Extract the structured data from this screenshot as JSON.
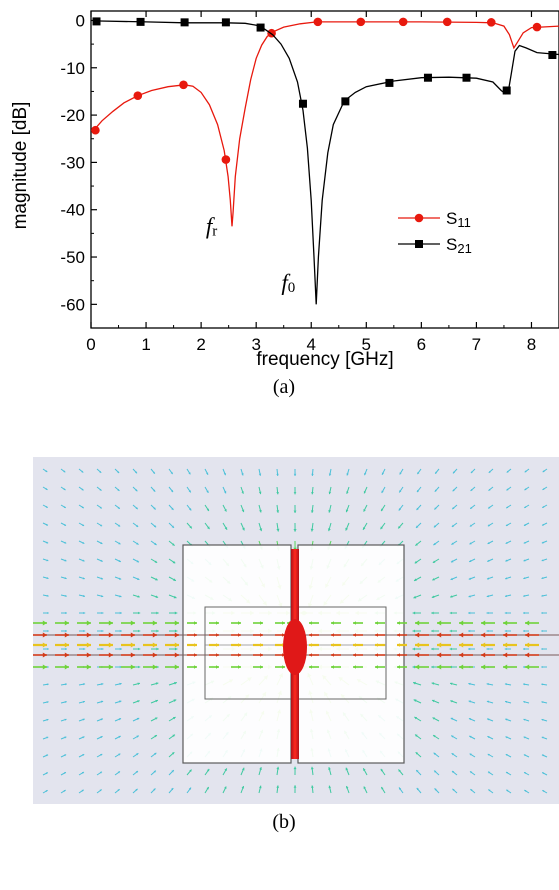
{
  "figure": {
    "caption_a": "(a)",
    "caption_b": "(b)"
  },
  "chart_data": {
    "type": "line",
    "xlabel": "frequency [GHz]",
    "ylabel": "magnitude [dB]",
    "xlim": [
      0,
      8.5
    ],
    "ylim": [
      -65,
      2
    ],
    "xticks": [
      0,
      1,
      2,
      3,
      4,
      5,
      6,
      7,
      8
    ],
    "yticks": [
      0,
      -10,
      -20,
      -30,
      -40,
      -50,
      -60
    ],
    "legend_position": "lower-right",
    "series": [
      {
        "name": "S11",
        "color": "#e8190e",
        "marker": "circle",
        "curve": [
          [
            0.05,
            -23.2
          ],
          [
            0.2,
            -21.2
          ],
          [
            0.4,
            -19.2
          ],
          [
            0.6,
            -17.4
          ],
          [
            0.85,
            -15.9
          ],
          [
            1.1,
            -14.8
          ],
          [
            1.4,
            -14.0
          ],
          [
            1.7,
            -13.6
          ],
          [
            1.85,
            -13.9
          ],
          [
            2.0,
            -15.2
          ],
          [
            2.15,
            -17.8
          ],
          [
            2.3,
            -22.0
          ],
          [
            2.42,
            -27.5
          ],
          [
            2.49,
            -33.0
          ],
          [
            2.53,
            -38.0
          ],
          [
            2.56,
            -43.5
          ],
          [
            2.58,
            -40.5
          ],
          [
            2.62,
            -33.0
          ],
          [
            2.7,
            -25.0
          ],
          [
            2.8,
            -18.5
          ],
          [
            2.9,
            -12.5
          ],
          [
            3.0,
            -8.0
          ],
          [
            3.1,
            -5.2
          ],
          [
            3.2,
            -3.4
          ],
          [
            3.33,
            -2.3
          ],
          [
            3.5,
            -1.4
          ],
          [
            3.8,
            -0.7
          ],
          [
            4.1,
            -0.3
          ],
          [
            5.0,
            -0.3
          ],
          [
            6.0,
            -0.3
          ],
          [
            7.0,
            -0.4
          ],
          [
            7.3,
            -0.5
          ],
          [
            7.5,
            -1.2
          ],
          [
            7.6,
            -3.0
          ],
          [
            7.68,
            -5.8
          ],
          [
            7.75,
            -4.5
          ],
          [
            7.85,
            -2.6
          ],
          [
            8.0,
            -1.5
          ],
          [
            8.5,
            -1.2
          ]
        ],
        "markers": [
          [
            0.08,
            -23.2
          ],
          [
            0.85,
            -15.9
          ],
          [
            1.68,
            -13.6
          ],
          [
            2.45,
            -29.4
          ],
          [
            3.28,
            -2.7
          ],
          [
            4.12,
            -0.3
          ],
          [
            4.9,
            -0.3
          ],
          [
            5.67,
            -0.3
          ],
          [
            6.47,
            -0.3
          ],
          [
            7.27,
            -0.4
          ],
          [
            8.1,
            -1.4
          ]
        ]
      },
      {
        "name": "S21",
        "color": "#000000",
        "marker": "square",
        "curve": [
          [
            0.05,
            -0.1
          ],
          [
            1.0,
            -0.3
          ],
          [
            1.7,
            -0.5
          ],
          [
            2.45,
            -0.5
          ],
          [
            2.8,
            -0.6
          ],
          [
            3.0,
            -1.0
          ],
          [
            3.15,
            -1.8
          ],
          [
            3.3,
            -3.0
          ],
          [
            3.45,
            -5.0
          ],
          [
            3.6,
            -8.0
          ],
          [
            3.75,
            -13.0
          ],
          [
            3.85,
            -19.0
          ],
          [
            3.93,
            -27.0
          ],
          [
            4.0,
            -38.0
          ],
          [
            4.05,
            -50.0
          ],
          [
            4.09,
            -60.0
          ],
          [
            4.13,
            -50.0
          ],
          [
            4.2,
            -38.0
          ],
          [
            4.3,
            -28.0
          ],
          [
            4.4,
            -22.0
          ],
          [
            4.6,
            -17.0
          ],
          [
            4.8,
            -15.2
          ],
          [
            5.0,
            -14.0
          ],
          [
            5.5,
            -12.8
          ],
          [
            6.0,
            -12.1
          ],
          [
            6.5,
            -12.0
          ],
          [
            7.0,
            -12.2
          ],
          [
            7.3,
            -13.0
          ],
          [
            7.45,
            -14.8
          ],
          [
            7.53,
            -15.5
          ],
          [
            7.58,
            -15.0
          ],
          [
            7.63,
            -11.5
          ],
          [
            7.7,
            -6.5
          ],
          [
            7.78,
            -5.3
          ],
          [
            7.9,
            -5.8
          ],
          [
            8.1,
            -6.8
          ],
          [
            8.5,
            -7.2
          ]
        ],
        "markers": [
          [
            0.1,
            -0.2
          ],
          [
            0.9,
            -0.3
          ],
          [
            1.7,
            -0.4
          ],
          [
            2.45,
            -0.4
          ],
          [
            3.08,
            -1.5
          ],
          [
            3.85,
            -17.6
          ],
          [
            4.62,
            -17.1
          ],
          [
            5.42,
            -13.2
          ],
          [
            6.12,
            -12.1
          ],
          [
            6.82,
            -12.1
          ],
          [
            7.55,
            -14.8
          ],
          [
            8.38,
            -7.3
          ]
        ]
      }
    ],
    "annotations": [
      {
        "label": "f",
        "subscript": "r",
        "x": 2.45,
        "y": -45
      },
      {
        "label": "f",
        "subscript": "0",
        "x": 3.82,
        "y": -57
      }
    ]
  }
}
